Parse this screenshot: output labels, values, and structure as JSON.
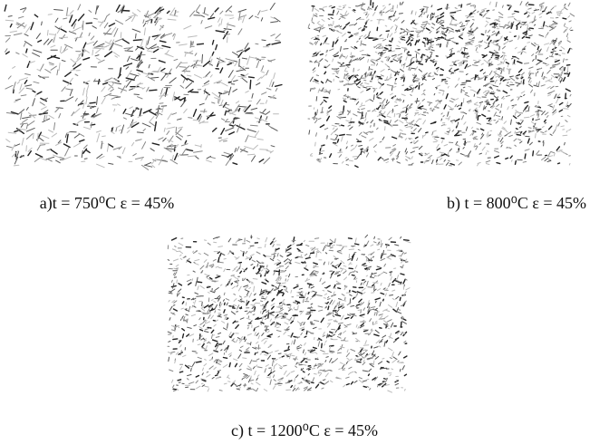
{
  "figures": [
    {
      "caption": "a)t = 750⁰C ε = 45%"
    },
    {
      "caption": "b) t = 800⁰C ε = 45%"
    },
    {
      "caption": "c) t = 1200⁰C ε = 45%"
    }
  ]
}
